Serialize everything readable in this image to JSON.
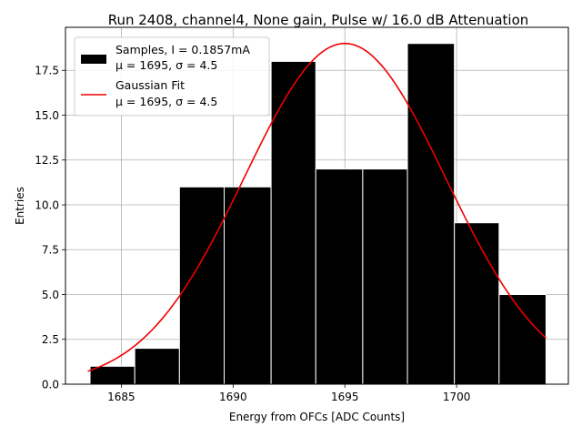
{
  "chart_data": {
    "type": "bar",
    "title": "Run 2408, channel4, None gain, Pulse w/ 16.0 dB Attenuation",
    "xlabel": "Energy from OFCs [ADC Counts]",
    "ylabel": "Entries",
    "xlim": [
      1682.5,
      1705.0
    ],
    "ylim": [
      0.0,
      19.9
    ],
    "xticks": [
      1685,
      1690,
      1695,
      1700
    ],
    "yticks": [
      0.0,
      2.5,
      5.0,
      7.5,
      10.0,
      12.5,
      15.0,
      17.5
    ],
    "grid": true,
    "legend_position": "top-left",
    "bin_edges": [
      1683.6,
      1685.6,
      1687.6,
      1689.6,
      1691.7,
      1693.7,
      1695.8,
      1697.8,
      1699.9,
      1701.9,
      1704.0
    ],
    "values": [
      1,
      2,
      11,
      11,
      18,
      12,
      12,
      19,
      9,
      5
    ],
    "fit": {
      "mu": 1695.0,
      "sigma": 4.5,
      "amplitude": 19.0,
      "x_range": [
        1683.5,
        1704.0
      ]
    },
    "series": [
      {
        "name": "Samples, I = 0.1857mA",
        "stats_label": "μ = 1695, σ = 4.5",
        "color": "#000000",
        "kind": "histogram"
      },
      {
        "name": "Gaussian Fit",
        "stats_label": "μ = 1695, σ = 4.5",
        "color": "#ee0000",
        "kind": "line"
      }
    ]
  }
}
